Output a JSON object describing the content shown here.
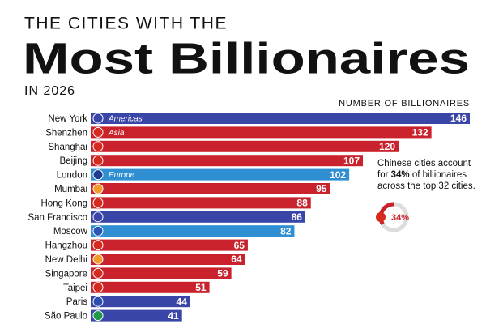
{
  "chart_data": {
    "type": "bar",
    "orientation": "horizontal",
    "title_top": "THE CITIES WITH THE",
    "title": "Most Billionaires",
    "subtitle": "IN 2026",
    "value_axis_label": "NUMBER OF BILLIONAIRES",
    "categories": [
      "New York",
      "Shenzhen",
      "Shanghai",
      "Beijing",
      "London",
      "Mumbai",
      "Hong Kong",
      "San Francisco",
      "Moscow",
      "Hangzhou",
      "New Delhi",
      "Singapore",
      "Taipei",
      "Paris",
      "São Paulo"
    ],
    "values": [
      146,
      132,
      120,
      107,
      102,
      95,
      88,
      86,
      82,
      65,
      64,
      59,
      51,
      44,
      41
    ],
    "colors": [
      "#3a45a8",
      "#c9222c",
      "#c9222c",
      "#c9222c",
      "#2f8fd2",
      "#c9222c",
      "#c9222c",
      "#3a45a8",
      "#2f8fd2",
      "#c9222c",
      "#c9222c",
      "#c9222c",
      "#c9222c",
      "#3a45a8",
      "#3a45a8"
    ],
    "region_labels": [
      "Americas",
      "Asia",
      null,
      null,
      "Europe",
      null,
      null,
      null,
      null,
      null,
      null,
      null,
      null,
      null,
      null
    ],
    "annotation": {
      "lines": [
        [
          "Chinese cities account"
        ],
        [
          "for ",
          "34%",
          " of billionaires"
        ],
        [
          "across the top 32 cities."
        ]
      ],
      "share": 34,
      "share_label": "34%"
    }
  }
}
